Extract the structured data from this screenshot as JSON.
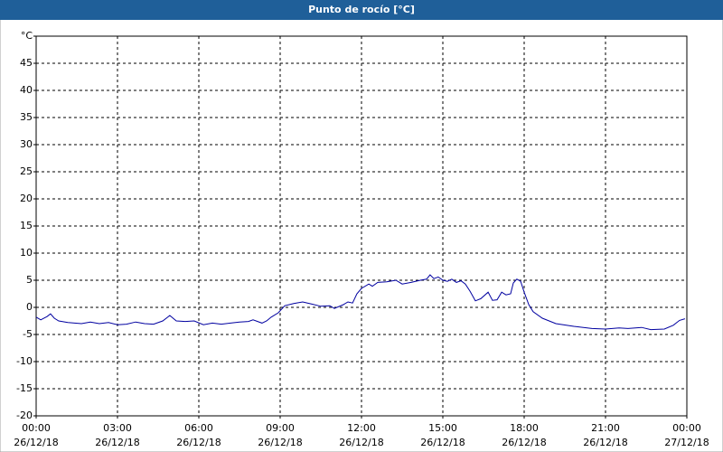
{
  "chart_data": {
    "type": "line",
    "title": "Punto de rocío [°C]",
    "x": [
      0,
      0.17,
      0.4,
      0.53,
      0.67,
      0.83,
      1.17,
      1.67,
      2,
      2.33,
      2.67,
      3,
      3.33,
      3.67,
      4,
      4.33,
      4.67,
      4.93,
      5.17,
      5.5,
      5.83,
      6.17,
      6.5,
      6.83,
      7.17,
      7.5,
      7.83,
      8,
      8.33,
      8.5,
      8.67,
      8.93,
      9.17,
      9.5,
      9.83,
      10.17,
      10.5,
      10.83,
      11,
      11.33,
      11.5,
      11.67,
      11.83,
      12,
      12.27,
      12.4,
      12.6,
      12.93,
      13.27,
      13.5,
      13.83,
      14.17,
      14.4,
      14.53,
      14.67,
      14.83,
      15,
      15.17,
      15.33,
      15.5,
      15.67,
      15.83,
      16,
      16.2,
      16.4,
      16.67,
      16.83,
      17,
      17.17,
      17.33,
      17.5,
      17.6,
      17.73,
      17.87,
      18,
      18.17,
      18.33,
      18.67,
      19.17,
      19.83,
      20.5,
      21,
      21.5,
      21.83,
      22.33,
      22.67,
      23.17,
      23.5,
      23.73,
      23.93
    ],
    "values": [
      -1.8,
      -2.3,
      -1.7,
      -1.2,
      -2.0,
      -2.5,
      -2.8,
      -3.0,
      -2.7,
      -3.0,
      -2.8,
      -3.2,
      -3.1,
      -2.7,
      -3.0,
      -3.1,
      -2.5,
      -1.5,
      -2.5,
      -2.6,
      -2.5,
      -3.2,
      -2.9,
      -3.1,
      -2.9,
      -2.7,
      -2.6,
      -2.3,
      -2.9,
      -2.5,
      -1.8,
      -1.0,
      0.3,
      0.7,
      1.0,
      0.6,
      0.2,
      0.3,
      -0.2,
      0.5,
      1.0,
      0.8,
      2.5,
      3.5,
      4.3,
      3.9,
      4.6,
      4.7,
      5.0,
      4.3,
      4.6,
      5.0,
      5.2,
      6.0,
      5.3,
      5.6,
      5.0,
      4.8,
      5.2,
      4.6,
      4.9,
      4.3,
      3.0,
      1.2,
      1.6,
      2.8,
      1.3,
      1.4,
      2.8,
      2.3,
      2.5,
      4.5,
      5.2,
      4.8,
      2.8,
      0.5,
      -0.8,
      -2.0,
      -3.0,
      -3.5,
      -3.9,
      -4.0,
      -3.8,
      -3.9,
      -3.7,
      -4.1,
      -4.0,
      -3.3,
      -2.4,
      -2.1
    ],
    "color": "#0000a0",
    "xlim": [
      0,
      24
    ],
    "xticks": [
      {
        "value": 0,
        "label": "00:00",
        "date": "26/12/18"
      },
      {
        "value": 3,
        "label": "03:00",
        "date": "26/12/18"
      },
      {
        "value": 6,
        "label": "06:00",
        "date": "26/12/18"
      },
      {
        "value": 9,
        "label": "09:00",
        "date": "26/12/18"
      },
      {
        "value": 12,
        "label": "12:00",
        "date": "26/12/18"
      },
      {
        "value": 15,
        "label": "15:00",
        "date": "26/12/18"
      },
      {
        "value": 18,
        "label": "18:00",
        "date": "26/12/18"
      },
      {
        "value": 21,
        "label": "21:00",
        "date": "26/12/18"
      },
      {
        "value": 24,
        "label": "00:00",
        "date": "27/12/18"
      }
    ],
    "ylim": [
      -20,
      50
    ],
    "yticks": [
      -20,
      -15,
      -10,
      -5,
      0,
      5,
      10,
      15,
      20,
      25,
      30,
      35,
      40,
      45,
      {
        "value": 50,
        "label": "°C"
      }
    ],
    "grid": true
  }
}
